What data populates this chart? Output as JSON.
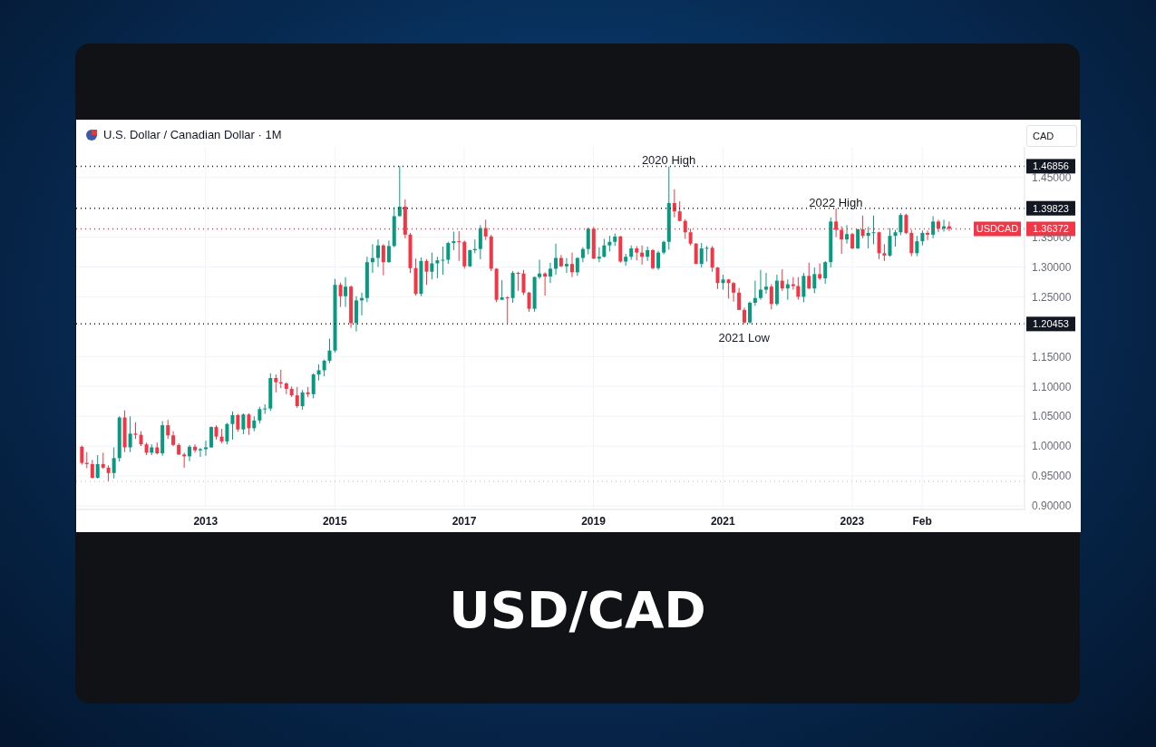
{
  "chart_data": {
    "type": "candlestick",
    "title": "USD/CAD",
    "subtitle": "U.S. Dollar / Canadian Dollar · 1M",
    "ylabel": "CAD",
    "x": [
      "2011-02",
      "2011-03",
      "2011-04",
      "2011-05",
      "2011-06",
      "2011-07",
      "2011-08",
      "2011-09",
      "2011-10",
      "2011-11",
      "2011-12",
      "2012-01",
      "2012-02",
      "2012-03",
      "2012-04",
      "2012-05",
      "2012-06",
      "2012-07",
      "2012-08",
      "2012-09",
      "2012-10",
      "2012-11",
      "2012-12",
      "2013-01",
      "2013-02",
      "2013-03",
      "2013-04",
      "2013-05",
      "2013-06",
      "2013-07",
      "2013-08",
      "2013-09",
      "2013-10",
      "2013-11",
      "2013-12",
      "2014-01",
      "2014-02",
      "2014-03",
      "2014-04",
      "2014-05",
      "2014-06",
      "2014-07",
      "2014-08",
      "2014-09",
      "2014-10",
      "2014-11",
      "2014-12",
      "2015-01",
      "2015-02",
      "2015-03",
      "2015-04",
      "2015-05",
      "2015-06",
      "2015-07",
      "2015-08",
      "2015-09",
      "2015-10",
      "2015-11",
      "2015-12",
      "2016-01",
      "2016-02",
      "2016-03",
      "2016-04",
      "2016-05",
      "2016-06",
      "2016-07",
      "2016-08",
      "2016-09",
      "2016-10",
      "2016-11",
      "2016-12",
      "2017-01",
      "2017-02",
      "2017-03",
      "2017-04",
      "2017-05",
      "2017-06",
      "2017-07",
      "2017-08",
      "2017-09",
      "2017-10",
      "2017-11",
      "2017-12",
      "2018-01",
      "2018-02",
      "2018-03",
      "2018-04",
      "2018-05",
      "2018-06",
      "2018-07",
      "2018-08",
      "2018-09",
      "2018-10",
      "2018-11",
      "2018-12",
      "2019-01",
      "2019-02",
      "2019-03",
      "2019-04",
      "2019-05",
      "2019-06",
      "2019-07",
      "2019-08",
      "2019-09",
      "2019-10",
      "2019-11",
      "2019-12",
      "2020-01",
      "2020-02",
      "2020-03",
      "2020-04",
      "2020-05",
      "2020-06",
      "2020-07",
      "2020-08",
      "2020-09",
      "2020-10",
      "2020-11",
      "2020-12",
      "2021-01",
      "2021-02",
      "2021-03",
      "2021-04",
      "2021-05",
      "2021-06",
      "2021-07",
      "2021-08",
      "2021-09",
      "2021-10",
      "2021-11",
      "2021-12",
      "2022-01",
      "2022-02",
      "2022-03",
      "2022-04",
      "2022-05",
      "2022-06",
      "2022-07",
      "2022-08",
      "2022-09",
      "2022-10",
      "2022-11",
      "2022-12",
      "2023-01",
      "2023-02",
      "2023-03",
      "2023-04",
      "2023-05",
      "2023-06",
      "2023-07",
      "2023-08",
      "2023-09",
      "2023-10",
      "2023-11",
      "2023-12",
      "2024-01",
      "2024-02",
      "2024-03",
      "2024-04",
      "2024-05",
      "2024-06",
      "2024-07"
    ],
    "ohlc": [
      [
        0.999,
        1.001,
        0.969,
        0.972
      ],
      [
        0.972,
        0.99,
        0.963,
        0.97
      ],
      [
        0.97,
        0.977,
        0.946,
        0.947
      ],
      [
        0.947,
        0.985,
        0.946,
        0.97
      ],
      [
        0.97,
        0.989,
        0.962,
        0.964
      ],
      [
        0.964,
        0.968,
        0.941,
        0.955
      ],
      [
        0.955,
        0.998,
        0.946,
        0.98
      ],
      [
        0.98,
        1.05,
        0.974,
        1.048
      ],
      [
        1.048,
        1.06,
        0.99,
        0.998
      ],
      [
        0.998,
        1.05,
        0.99,
        1.021
      ],
      [
        1.021,
        1.04,
        1.012,
        1.019
      ],
      [
        1.019,
        1.025,
        1.0,
        1.003
      ],
      [
        1.003,
        1.006,
        0.985,
        0.989
      ],
      [
        0.989,
        1.003,
        0.985,
        0.998
      ],
      [
        0.998,
        1.006,
        0.986,
        0.988
      ],
      [
        0.988,
        1.042,
        0.984,
        1.035
      ],
      [
        1.035,
        1.044,
        1.012,
        1.018
      ],
      [
        1.018,
        1.025,
        1.0,
        1.002
      ],
      [
        1.002,
        1.005,
        0.985,
        0.986
      ],
      [
        0.986,
        0.989,
        0.964,
        0.983
      ],
      [
        0.983,
        1.002,
        0.975,
        0.999
      ],
      [
        0.999,
        1.003,
        0.989,
        0.993
      ],
      [
        0.993,
        0.997,
        0.982,
        0.995
      ],
      [
        0.995,
        1.009,
        0.984,
        0.998
      ],
      [
        0.998,
        1.033,
        0.997,
        1.032
      ],
      [
        1.032,
        1.035,
        1.011,
        1.016
      ],
      [
        1.016,
        1.029,
        1.005,
        1.008
      ],
      [
        1.008,
        1.039,
        1.003,
        1.037
      ],
      [
        1.037,
        1.058,
        1.011,
        1.052
      ],
      [
        1.052,
        1.054,
        1.024,
        1.028
      ],
      [
        1.028,
        1.055,
        1.02,
        1.053
      ],
      [
        1.053,
        1.055,
        1.019,
        1.03
      ],
      [
        1.03,
        1.05,
        1.025,
        1.043
      ],
      [
        1.043,
        1.066,
        1.038,
        1.062
      ],
      [
        1.062,
        1.07,
        1.054,
        1.063
      ],
      [
        1.063,
        1.122,
        1.059,
        1.114
      ],
      [
        1.114,
        1.12,
        1.09,
        1.107
      ],
      [
        1.107,
        1.128,
        1.097,
        1.105
      ],
      [
        1.105,
        1.107,
        1.087,
        1.096
      ],
      [
        1.096,
        1.1,
        1.082,
        1.085
      ],
      [
        1.085,
        1.099,
        1.064,
        1.067
      ],
      [
        1.067,
        1.094,
        1.061,
        1.09
      ],
      [
        1.09,
        1.099,
        1.082,
        1.087
      ],
      [
        1.087,
        1.122,
        1.08,
        1.12
      ],
      [
        1.12,
        1.137,
        1.11,
        1.127
      ],
      [
        1.127,
        1.145,
        1.117,
        1.143
      ],
      [
        1.143,
        1.18,
        1.139,
        1.16
      ],
      [
        1.16,
        1.28,
        1.157,
        1.27
      ],
      [
        1.27,
        1.274,
        1.233,
        1.251
      ],
      [
        1.251,
        1.283,
        1.233,
        1.267
      ],
      [
        1.267,
        1.269,
        1.198,
        1.206
      ],
      [
        1.206,
        1.251,
        1.192,
        1.244
      ],
      [
        1.244,
        1.257,
        1.219,
        1.248
      ],
      [
        1.248,
        1.317,
        1.241,
        1.308
      ],
      [
        1.308,
        1.338,
        1.29,
        1.315
      ],
      [
        1.315,
        1.346,
        1.3,
        1.336
      ],
      [
        1.336,
        1.338,
        1.286,
        1.308
      ],
      [
        1.308,
        1.344,
        1.307,
        1.335
      ],
      [
        1.335,
        1.4,
        1.333,
        1.385
      ],
      [
        1.385,
        1.469,
        1.385,
        1.401
      ],
      [
        1.401,
        1.413,
        1.348,
        1.354
      ],
      [
        1.354,
        1.357,
        1.29,
        1.298
      ],
      [
        1.298,
        1.314,
        1.252,
        1.255
      ],
      [
        1.255,
        1.316,
        1.251,
        1.31
      ],
      [
        1.31,
        1.313,
        1.27,
        1.292
      ],
      [
        1.292,
        1.324,
        1.279,
        1.306
      ],
      [
        1.306,
        1.317,
        1.281,
        1.311
      ],
      [
        1.311,
        1.334,
        1.287,
        1.312
      ],
      [
        1.312,
        1.342,
        1.305,
        1.34
      ],
      [
        1.34,
        1.359,
        1.328,
        1.343
      ],
      [
        1.343,
        1.36,
        1.31,
        1.342
      ],
      [
        1.342,
        1.344,
        1.297,
        1.301
      ],
      [
        1.301,
        1.329,
        1.3,
        1.328
      ],
      [
        1.328,
        1.346,
        1.323,
        1.33
      ],
      [
        1.33,
        1.37,
        1.313,
        1.365
      ],
      [
        1.365,
        1.379,
        1.345,
        1.351
      ],
      [
        1.351,
        1.354,
        1.293,
        1.297
      ],
      [
        1.297,
        1.298,
        1.241,
        1.245
      ],
      [
        1.245,
        1.278,
        1.245,
        1.249
      ],
      [
        1.249,
        1.251,
        1.206,
        1.248
      ],
      [
        1.248,
        1.293,
        1.24,
        1.29
      ],
      [
        1.29,
        1.292,
        1.26,
        1.289
      ],
      [
        1.289,
        1.295,
        1.253,
        1.257
      ],
      [
        1.257,
        1.258,
        1.225,
        1.23
      ],
      [
        1.23,
        1.284,
        1.225,
        1.283
      ],
      [
        1.283,
        1.312,
        1.28,
        1.289
      ],
      [
        1.289,
        1.291,
        1.252,
        1.284
      ],
      [
        1.284,
        1.307,
        1.273,
        1.297
      ],
      [
        1.297,
        1.339,
        1.287,
        1.315
      ],
      [
        1.315,
        1.32,
        1.3,
        1.301
      ],
      [
        1.301,
        1.315,
        1.29,
        1.305
      ],
      [
        1.305,
        1.324,
        1.283,
        1.291
      ],
      [
        1.291,
        1.316,
        1.285,
        1.315
      ],
      [
        1.315,
        1.333,
        1.308,
        1.33
      ],
      [
        1.33,
        1.366,
        1.321,
        1.364
      ],
      [
        1.364,
        1.367,
        1.313,
        1.314
      ],
      [
        1.314,
        1.333,
        1.308,
        1.317
      ],
      [
        1.317,
        1.347,
        1.316,
        1.336
      ],
      [
        1.336,
        1.352,
        1.326,
        1.342
      ],
      [
        1.342,
        1.356,
        1.335,
        1.351
      ],
      [
        1.351,
        1.352,
        1.307,
        1.309
      ],
      [
        1.309,
        1.322,
        1.302,
        1.317
      ],
      [
        1.317,
        1.336,
        1.312,
        1.331
      ],
      [
        1.331,
        1.335,
        1.311,
        1.324
      ],
      [
        1.324,
        1.336,
        1.304,
        1.317
      ],
      [
        1.317,
        1.334,
        1.31,
        1.328
      ],
      [
        1.328,
        1.33,
        1.296,
        1.298
      ],
      [
        1.298,
        1.327,
        1.295,
        1.324
      ],
      [
        1.324,
        1.344,
        1.321,
        1.342
      ],
      [
        1.342,
        1.468,
        1.329,
        1.407
      ],
      [
        1.407,
        1.43,
        1.383,
        1.393
      ],
      [
        1.393,
        1.41,
        1.376,
        1.377
      ],
      [
        1.377,
        1.38,
        1.347,
        1.358
      ],
      [
        1.358,
        1.364,
        1.336,
        1.339
      ],
      [
        1.339,
        1.34,
        1.305,
        1.305
      ],
      [
        1.305,
        1.34,
        1.299,
        1.331
      ],
      [
        1.331,
        1.335,
        1.309,
        1.332
      ],
      [
        1.332,
        1.335,
        1.292,
        1.299
      ],
      [
        1.299,
        1.3,
        1.263,
        1.273
      ],
      [
        1.273,
        1.287,
        1.262,
        1.279
      ],
      [
        1.279,
        1.28,
        1.247,
        1.273
      ],
      [
        1.273,
        1.275,
        1.242,
        1.257
      ],
      [
        1.257,
        1.265,
        1.228,
        1.228
      ],
      [
        1.228,
        1.232,
        1.205,
        1.207
      ],
      [
        1.207,
        1.242,
        1.205,
        1.24
      ],
      [
        1.24,
        1.277,
        1.235,
        1.248
      ],
      [
        1.248,
        1.295,
        1.245,
        1.262
      ],
      [
        1.262,
        1.29,
        1.255,
        1.267
      ],
      [
        1.267,
        1.271,
        1.229,
        1.238
      ],
      [
        1.238,
        1.287,
        1.235,
        1.277
      ],
      [
        1.277,
        1.296,
        1.26,
        1.264
      ],
      [
        1.264,
        1.279,
        1.245,
        1.271
      ],
      [
        1.271,
        1.283,
        1.262,
        1.268
      ],
      [
        1.268,
        1.283,
        1.245,
        1.25
      ],
      [
        1.25,
        1.29,
        1.241,
        1.285
      ],
      [
        1.285,
        1.307,
        1.263,
        1.264
      ],
      [
        1.264,
        1.299,
        1.256,
        1.288
      ],
      [
        1.288,
        1.306,
        1.278,
        1.281
      ],
      [
        1.281,
        1.31,
        1.272,
        1.308
      ],
      [
        1.308,
        1.383,
        1.299,
        1.376
      ],
      [
        1.376,
        1.398,
        1.35,
        1.362
      ],
      [
        1.362,
        1.368,
        1.322,
        1.346
      ],
      [
        1.346,
        1.37,
        1.339,
        1.355
      ],
      [
        1.355,
        1.357,
        1.33,
        1.331
      ],
      [
        1.331,
        1.364,
        1.33,
        1.363
      ],
      [
        1.363,
        1.386,
        1.348,
        1.352
      ],
      [
        1.352,
        1.367,
        1.331,
        1.357
      ],
      [
        1.357,
        1.386,
        1.338,
        1.358
      ],
      [
        1.358,
        1.359,
        1.313,
        1.323
      ],
      [
        1.323,
        1.338,
        1.31,
        1.319
      ],
      [
        1.319,
        1.365,
        1.317,
        1.352
      ],
      [
        1.352,
        1.362,
        1.334,
        1.358
      ],
      [
        1.358,
        1.39,
        1.353,
        1.387
      ],
      [
        1.387,
        1.389,
        1.355,
        1.357
      ],
      [
        1.357,
        1.362,
        1.318,
        1.323
      ],
      [
        1.323,
        1.352,
        1.318,
        1.343
      ],
      [
        1.343,
        1.361,
        1.336,
        1.357
      ],
      [
        1.357,
        1.361,
        1.345,
        1.354
      ],
      [
        1.354,
        1.385,
        1.348,
        1.376
      ],
      [
        1.376,
        1.379,
        1.358,
        1.364
      ],
      [
        1.364,
        1.379,
        1.359,
        1.368
      ],
      [
        1.368,
        1.376,
        1.36,
        1.364
      ]
    ],
    "colors": [
      "#f23645",
      "#f23645",
      "#f23645",
      "#089981",
      "#f23645",
      "#f23645",
      "#089981",
      "#089981",
      "#f23645",
      "#089981",
      "#f23645",
      "#f23645",
      "#f23645",
      "#089981",
      "#f23645",
      "#089981",
      "#f23645",
      "#f23645",
      "#f23645",
      "#f23645",
      "#089981",
      "#f23645",
      "#089981",
      "#089981",
      "#089981",
      "#f23645",
      "#f23645",
      "#089981",
      "#089981",
      "#f23645",
      "#089981",
      "#f23645",
      "#089981",
      "#089981",
      "#089981",
      "#089981",
      "#f23645",
      "#f23645",
      "#f23645",
      "#f23645",
      "#f23645",
      "#089981",
      "#f23645",
      "#089981",
      "#089981",
      "#089981",
      "#089981",
      "#089981",
      "#f23645",
      "#089981",
      "#f23645",
      "#089981",
      "#089981",
      "#089981",
      "#089981",
      "#089981",
      "#f23645",
      "#089981",
      "#089981",
      "#089981",
      "#f23645",
      "#f23645",
      "#f23645",
      "#089981",
      "#f23645",
      "#089981",
      "#089981",
      "#089981",
      "#089981",
      "#089981",
      "#f23645",
      "#f23645",
      "#089981",
      "#089981",
      "#089981",
      "#f23645",
      "#f23645",
      "#f23645",
      "#089981",
      "#f23645",
      "#089981",
      "#f23645",
      "#f23645",
      "#f23645",
      "#089981",
      "#089981",
      "#f23645",
      "#089981",
      "#089981",
      "#f23645",
      "#089981",
      "#f23645",
      "#089981",
      "#089981",
      "#089981",
      "#f23645",
      "#089981",
      "#089981",
      "#089981",
      "#089981",
      "#f23645",
      "#089981",
      "#089981",
      "#f23645",
      "#f23645",
      "#089981",
      "#f23645",
      "#089981",
      "#089981",
      "#089981",
      "#f23645",
      "#f23645",
      "#f23645",
      "#f23645",
      "#f23645",
      "#089981",
      "#089981",
      "#f23645",
      "#f23645",
      "#089981",
      "#f23645",
      "#f23645",
      "#f23645",
      "#f23645",
      "#089981",
      "#089981",
      "#089981",
      "#089981",
      "#f23645",
      "#089981",
      "#f23645",
      "#089981",
      "#f23645",
      "#f23645",
      "#089981",
      "#f23645",
      "#089981",
      "#f23645",
      "#089981",
      "#089981",
      "#f23645",
      "#f23645",
      "#089981",
      "#f23645",
      "#089981",
      "#f23645",
      "#089981",
      "#089981",
      "#f23645",
      "#f23645",
      "#089981",
      "#089981",
      "#089981",
      "#f23645",
      "#f23645",
      "#089981",
      "#089981",
      "#f23645",
      "#089981",
      "#f23645",
      "#089981",
      "#f23645"
    ],
    "xlim": [
      "2011-01",
      "2025-09"
    ],
    "xticks": [
      {
        "value": "2013-01",
        "label": "2013"
      },
      {
        "value": "2015-01",
        "label": "2015"
      },
      {
        "value": "2017-01",
        "label": "2017"
      },
      {
        "value": "2019-01",
        "label": "2019"
      },
      {
        "value": "2021-01",
        "label": "2021"
      },
      {
        "value": "2023-01",
        "label": "2023"
      },
      {
        "value": "2024-02",
        "label": "Feb"
      }
    ],
    "ylim": [
      0.894,
      1.501
    ],
    "yticks": [
      {
        "value": 0.9,
        "label": "0.90000"
      },
      {
        "value": 0.95,
        "label": "0.95000"
      },
      {
        "value": 1.0,
        "label": "1.00000"
      },
      {
        "value": 1.05,
        "label": "1.05000"
      },
      {
        "value": 1.1,
        "label": "1.10000"
      },
      {
        "value": 1.15,
        "label": "1.15000"
      },
      {
        "value": 1.25,
        "label": "1.25000"
      },
      {
        "value": 1.3,
        "label": "1.30000"
      },
      {
        "value": 1.35,
        "label": "1.35000"
      },
      {
        "value": 1.45,
        "label": "1.45000"
      }
    ],
    "grid": true,
    "line_style": "dotted",
    "ref_lines": [
      {
        "axis": "y",
        "value": 1.46856,
        "label": "1.46856",
        "color": "#131722"
      },
      {
        "axis": "y",
        "value": 1.39823,
        "label": "1.39823",
        "color": "#131722"
      },
      {
        "axis": "y",
        "value": 1.20453,
        "label": "1.20453",
        "color": "#131722"
      },
      {
        "axis": "y",
        "value": 1.36372,
        "label": "1.36372",
        "color": "#f23645"
      },
      {
        "axis": "y",
        "value": 0.941,
        "color": "#b2b5be"
      }
    ],
    "annotations": [
      {
        "text": "2020 High",
        "x": "2020-03",
        "y": 1.46856
      },
      {
        "text": "2022 High",
        "x": "2022-10",
        "y": 1.39823
      },
      {
        "text": "2021 Low",
        "x": "2021-05",
        "y": 1.20453
      },
      {
        "text": "USDCAD",
        "y": 1.36372
      }
    ]
  }
}
